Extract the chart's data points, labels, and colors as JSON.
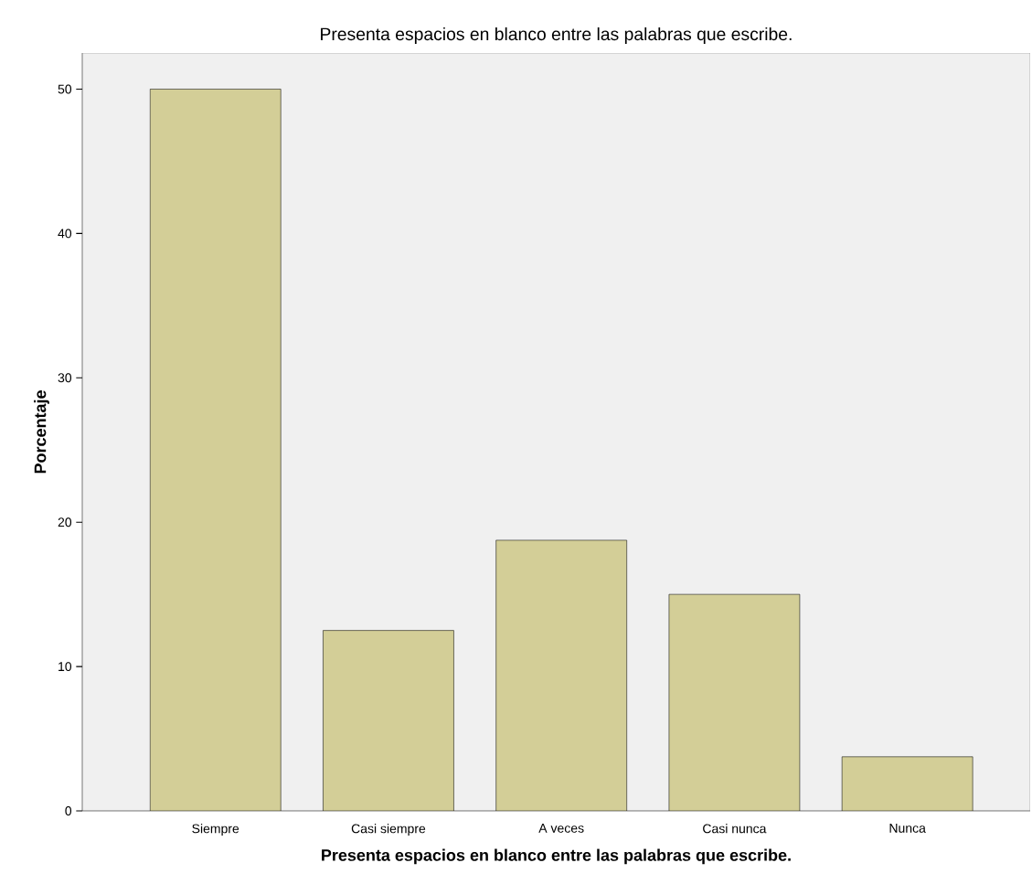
{
  "chart_data": {
    "type": "bar",
    "title": "Presenta espacios en blanco entre las palabras que escribe.",
    "xlabel": "Presenta espacios en blanco entre las palabras que escribe.",
    "ylabel": "Porcentaje",
    "categories": [
      "Siempre",
      "Casi siempre",
      "A veces",
      "Casi nunca",
      "Nunca"
    ],
    "values": [
      50,
      12.5,
      18.75,
      15,
      3.75
    ],
    "color": "#d3ce97",
    "ylim": [
      0,
      52.5
    ],
    "yticks": [
      0,
      10,
      20,
      30,
      40,
      50
    ],
    "grid": false
  }
}
